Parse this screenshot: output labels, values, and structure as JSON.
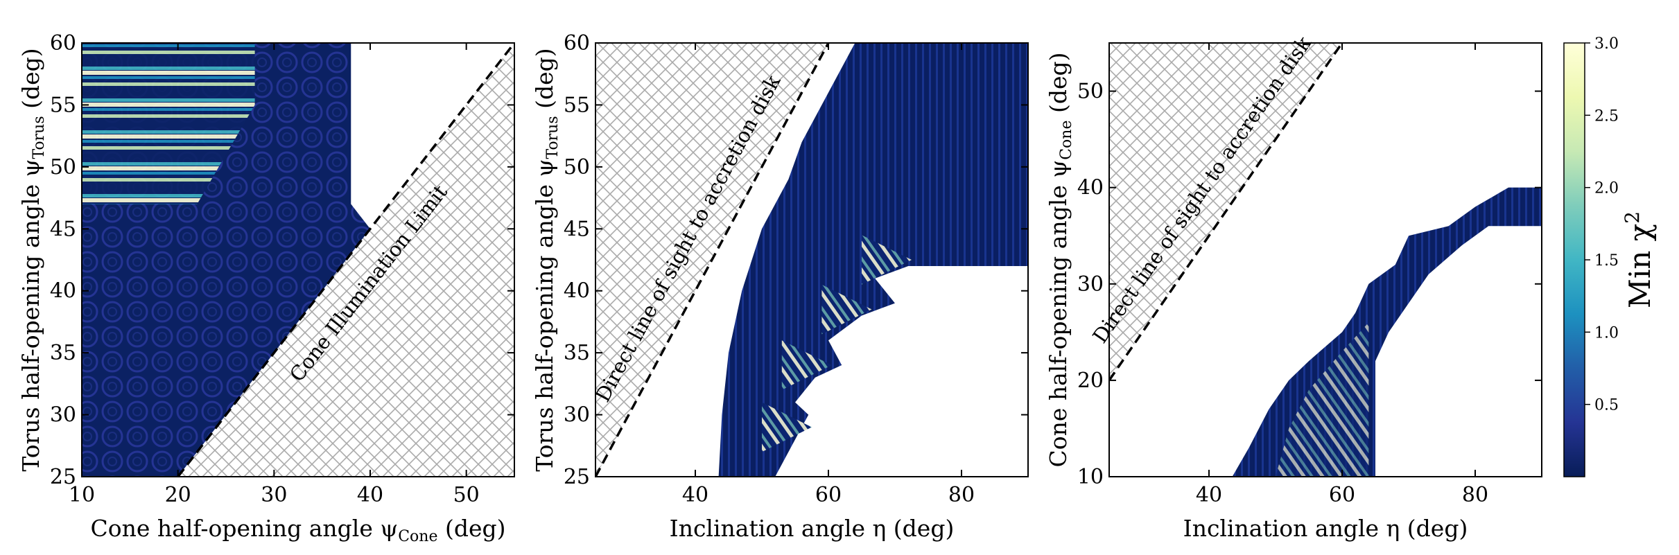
{
  "chart_data": [
    {
      "type": "heatmap",
      "xlabel": "Cone half-opening angle ψ",
      "xlabel_sub": "Cone",
      "xlabel_unit": " (deg)",
      "ylabel": "Torus half-opening angle ψ",
      "ylabel_sub": "Torus",
      "ylabel_unit": " (deg)",
      "xlim": [
        10,
        55
      ],
      "ylim": [
        25,
        60
      ],
      "xticks": [
        10,
        20,
        30,
        40,
        50
      ],
      "yticks": [
        25,
        30,
        35,
        40,
        45,
        50,
        55,
        60
      ],
      "boundary_line": {
        "x": [
          20,
          55
        ],
        "y": [
          25,
          60
        ]
      },
      "annotation": "Cone Illumination Limit",
      "forbidden_region": "below-right of line",
      "region_polygon": [
        [
          10,
          25
        ],
        [
          20,
          25
        ],
        [
          40,
          45
        ],
        [
          38,
          47
        ],
        [
          38,
          60
        ],
        [
          10,
          60
        ]
      ],
      "outline_polygon": [
        [
          10,
          25
        ],
        [
          10,
          60
        ],
        [
          38,
          60
        ],
        [
          38,
          47
        ],
        [
          40,
          45
        ]
      ]
    },
    {
      "type": "heatmap",
      "xlabel": "Inclination angle η",
      "xlabel_unit": " (deg)",
      "ylabel": "Torus half-opening angle ψ",
      "ylabel_sub": "Torus",
      "ylabel_unit": " (deg)",
      "xlim": [
        25,
        90
      ],
      "ylim": [
        25,
        60
      ],
      "xticks": [
        40,
        60,
        80
      ],
      "yticks": [
        25,
        30,
        35,
        40,
        45,
        50,
        55,
        60
      ],
      "boundary_line": {
        "x": [
          25,
          60
        ],
        "y": [
          25,
          60
        ]
      },
      "annotation": "Direct line of sight to accretion disk",
      "forbidden_region": "above-left of line",
      "region_polygon": [
        [
          43.5,
          25
        ],
        [
          52,
          25
        ],
        [
          54,
          27
        ],
        [
          57,
          30
        ],
        [
          55,
          31
        ],
        [
          58,
          33
        ],
        [
          62,
          34
        ],
        [
          60,
          36
        ],
        [
          65,
          38
        ],
        [
          70,
          39
        ],
        [
          67,
          41
        ],
        [
          72,
          42
        ],
        [
          90,
          42
        ],
        [
          90,
          60
        ],
        [
          64,
          60
        ],
        [
          61,
          57
        ],
        [
          58,
          54
        ],
        [
          56,
          52
        ],
        [
          54,
          49
        ],
        [
          50,
          45
        ],
        [
          47,
          40
        ],
        [
          45,
          35
        ],
        [
          44,
          30
        ]
      ],
      "spike_tips": [
        [
          57,
          29
        ],
        [
          60,
          34
        ],
        [
          66,
          38.5
        ],
        [
          72,
          42.5
        ]
      ]
    },
    {
      "type": "heatmap",
      "xlabel": "Inclination angle η",
      "xlabel_unit": " (deg)",
      "ylabel": "Cone half-opening angle ψ",
      "ylabel_sub": "Cone",
      "ylabel_unit": " (deg)",
      "xlim": [
        25,
        90
      ],
      "ylim": [
        10,
        55
      ],
      "xticks": [
        40,
        60,
        80
      ],
      "yticks": [
        10,
        20,
        30,
        40,
        50
      ],
      "boundary_line": {
        "x": [
          25,
          60
        ],
        "y": [
          20,
          55
        ]
      },
      "annotation": "Direct line of sight to accretion disk",
      "forbidden_region": "above-left of line",
      "region_polygon": [
        [
          43.5,
          10
        ],
        [
          65,
          10
        ],
        [
          65,
          22
        ],
        [
          67,
          25
        ],
        [
          70,
          28
        ],
        [
          73,
          31
        ],
        [
          78,
          34
        ],
        [
          82,
          36
        ],
        [
          90,
          36
        ],
        [
          90,
          40
        ],
        [
          85,
          40
        ],
        [
          80,
          38
        ],
        [
          76,
          36
        ],
        [
          70,
          35
        ],
        [
          68,
          32
        ],
        [
          64,
          30
        ],
        [
          62,
          27
        ],
        [
          60,
          25
        ],
        [
          55,
          22
        ],
        [
          52,
          20
        ],
        [
          49,
          17
        ],
        [
          46,
          13
        ]
      ],
      "stripe_region": [
        [
          50,
          10
        ],
        [
          64,
          10
        ],
        [
          64,
          26
        ],
        [
          60,
          23
        ],
        [
          55,
          19
        ],
        [
          52,
          15
        ]
      ]
    }
  ],
  "colorbar": {
    "label": "Min χ",
    "label_sup": "2",
    "ticks": [
      0.5,
      1.0,
      1.5,
      2.0,
      2.5,
      3.0
    ],
    "tick_labels": [
      "0.5",
      "1.0",
      "1.5",
      "2.0",
      "2.5",
      "3.0"
    ],
    "range": [
      0,
      3
    ],
    "colormap": "YlGnBu",
    "colors": [
      "#081d58",
      "#253494",
      "#225ea8",
      "#1d91c0",
      "#41b6c4",
      "#7fcdbb",
      "#c7e9b4",
      "#edf8b1",
      "#ffffd9"
    ]
  }
}
